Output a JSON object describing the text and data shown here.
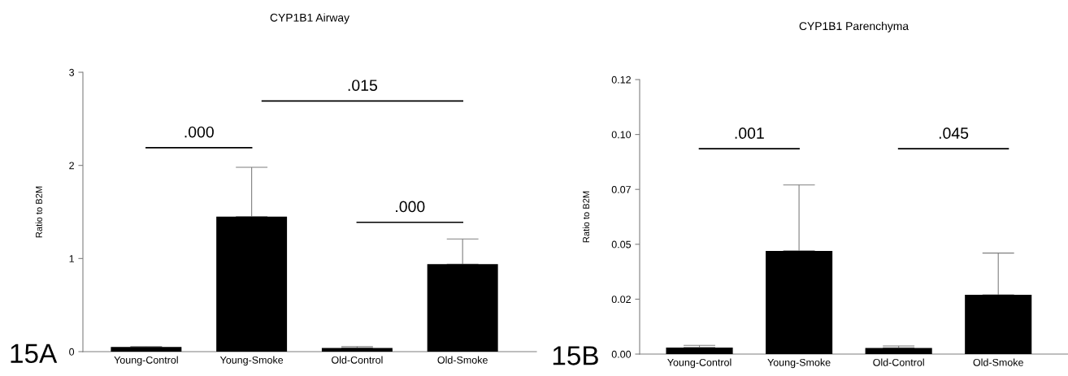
{
  "chart_data": [
    {
      "type": "bar",
      "title": "CYP1B1 Airway",
      "ylabel": "Ratio to B2M",
      "categories": [
        "Young-Control",
        "Young-Smoke",
        "Old-Control",
        "Old-Smoke"
      ],
      "values": [
        0.05,
        1.45,
        0.04,
        0.94
      ],
      "color": "#000000",
      "errors": [
        [
          0.05,
          0.054
        ],
        [
          1.45,
          1.98
        ],
        [
          0.04,
          0.054
        ],
        [
          0.94,
          1.21
        ]
      ],
      "ylim": [
        0,
        3
      ],
      "yticks": [
        0,
        1,
        2,
        3
      ],
      "grid": false,
      "annotations": [
        ".000",
        ".015",
        ".000",
        "15A"
      ]
    },
    {
      "type": "bar",
      "title": "CYP1B1 Parenchyma",
      "ylabel": "Ratio to B2M",
      "categories": [
        "Young-Control",
        "Young-Smoke",
        "Old-Control",
        "Old-Smoke"
      ],
      "values": [
        0.003,
        0.047,
        0.0028,
        0.027
      ],
      "color": "#000000",
      "errors": [
        [
          0.003,
          0.004
        ],
        [
          0.047,
          0.077
        ],
        [
          0.0028,
          0.0037
        ],
        [
          0.027,
          0.046
        ]
      ],
      "ylim": [
        0,
        0.125
      ],
      "yticks": [
        {
          "value": 0,
          "label": "0.00"
        },
        {
          "value": 0.025,
          "label": "0.02"
        },
        {
          "value": 0.05,
          "label": "0.05"
        },
        {
          "value": 0.075,
          "label": "0.07"
        },
        {
          "value": 0.1,
          "label": "0.10"
        },
        {
          "value": 0.125,
          "label": "0.12"
        }
      ],
      "grid": false,
      "annotations": [
        ".001",
        ".045",
        "15B"
      ]
    }
  ]
}
